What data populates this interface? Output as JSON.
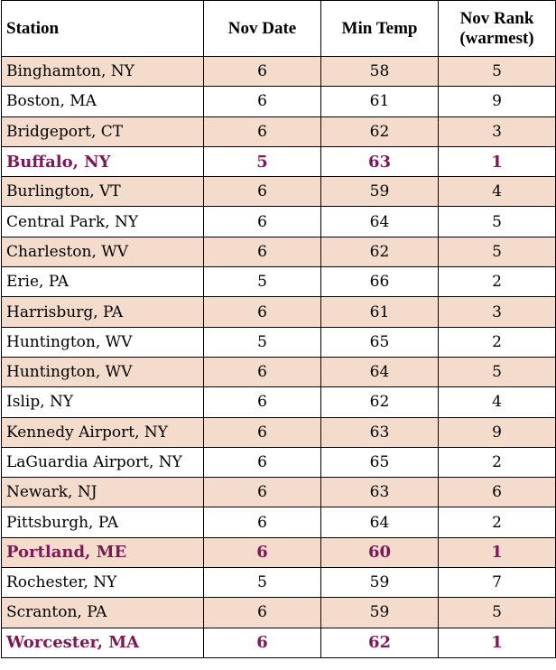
{
  "table": {
    "headers": {
      "station": "Station",
      "nov_date": "Nov Date",
      "min_temp": "Min Temp",
      "nov_rank_line1": "Nov Rank",
      "nov_rank_line2": "(warmest)"
    },
    "colors": {
      "shaded_row": "#f4dccc",
      "record_text": "#7b1a55",
      "border": "#000000"
    },
    "rows": [
      {
        "station": "Binghamton, NY",
        "date": "6",
        "temp": "58",
        "rank": "5"
      },
      {
        "station": "Boston, MA",
        "date": "6",
        "temp": "61",
        "rank": "9"
      },
      {
        "station": "Bridgeport, CT",
        "date": "6",
        "temp": "62",
        "rank": "3"
      },
      {
        "station": "Buffalo, NY",
        "date": "5",
        "temp": "63",
        "rank": "1"
      },
      {
        "station": "Burlington, VT",
        "date": "6",
        "temp": "59",
        "rank": "4"
      },
      {
        "station": "Central Park, NY",
        "date": "6",
        "temp": "64",
        "rank": "5"
      },
      {
        "station": "Charleston, WV",
        "date": "6",
        "temp": "62",
        "rank": "5"
      },
      {
        "station": "Erie, PA",
        "date": "5",
        "temp": "66",
        "rank": "2"
      },
      {
        "station": "Harrisburg, PA",
        "date": "6",
        "temp": "61",
        "rank": "3"
      },
      {
        "station": "Huntington, WV",
        "date": "5",
        "temp": "65",
        "rank": "2"
      },
      {
        "station": "Huntington, WV",
        "date": "6",
        "temp": "64",
        "rank": "5"
      },
      {
        "station": "Islip, NY",
        "date": "6",
        "temp": "62",
        "rank": "4"
      },
      {
        "station": "Kennedy Airport, NY",
        "date": "6",
        "temp": "63",
        "rank": "9"
      },
      {
        "station": "LaGuardia Airport, NY",
        "date": "6",
        "temp": "65",
        "rank": "2"
      },
      {
        "station": "Newark, NJ",
        "date": "6",
        "temp": "63",
        "rank": "6"
      },
      {
        "station": "Pittsburgh, PA",
        "date": "6",
        "temp": "64",
        "rank": "2"
      },
      {
        "station": "Portland, ME",
        "date": "6",
        "temp": "60",
        "rank": "1"
      },
      {
        "station": "Rochester, NY",
        "date": "5",
        "temp": "59",
        "rank": "7"
      },
      {
        "station": "Scranton, PA",
        "date": "6",
        "temp": "59",
        "rank": "5"
      },
      {
        "station": "Worcester, MA",
        "date": "6",
        "temp": "62",
        "rank": "1"
      }
    ]
  }
}
